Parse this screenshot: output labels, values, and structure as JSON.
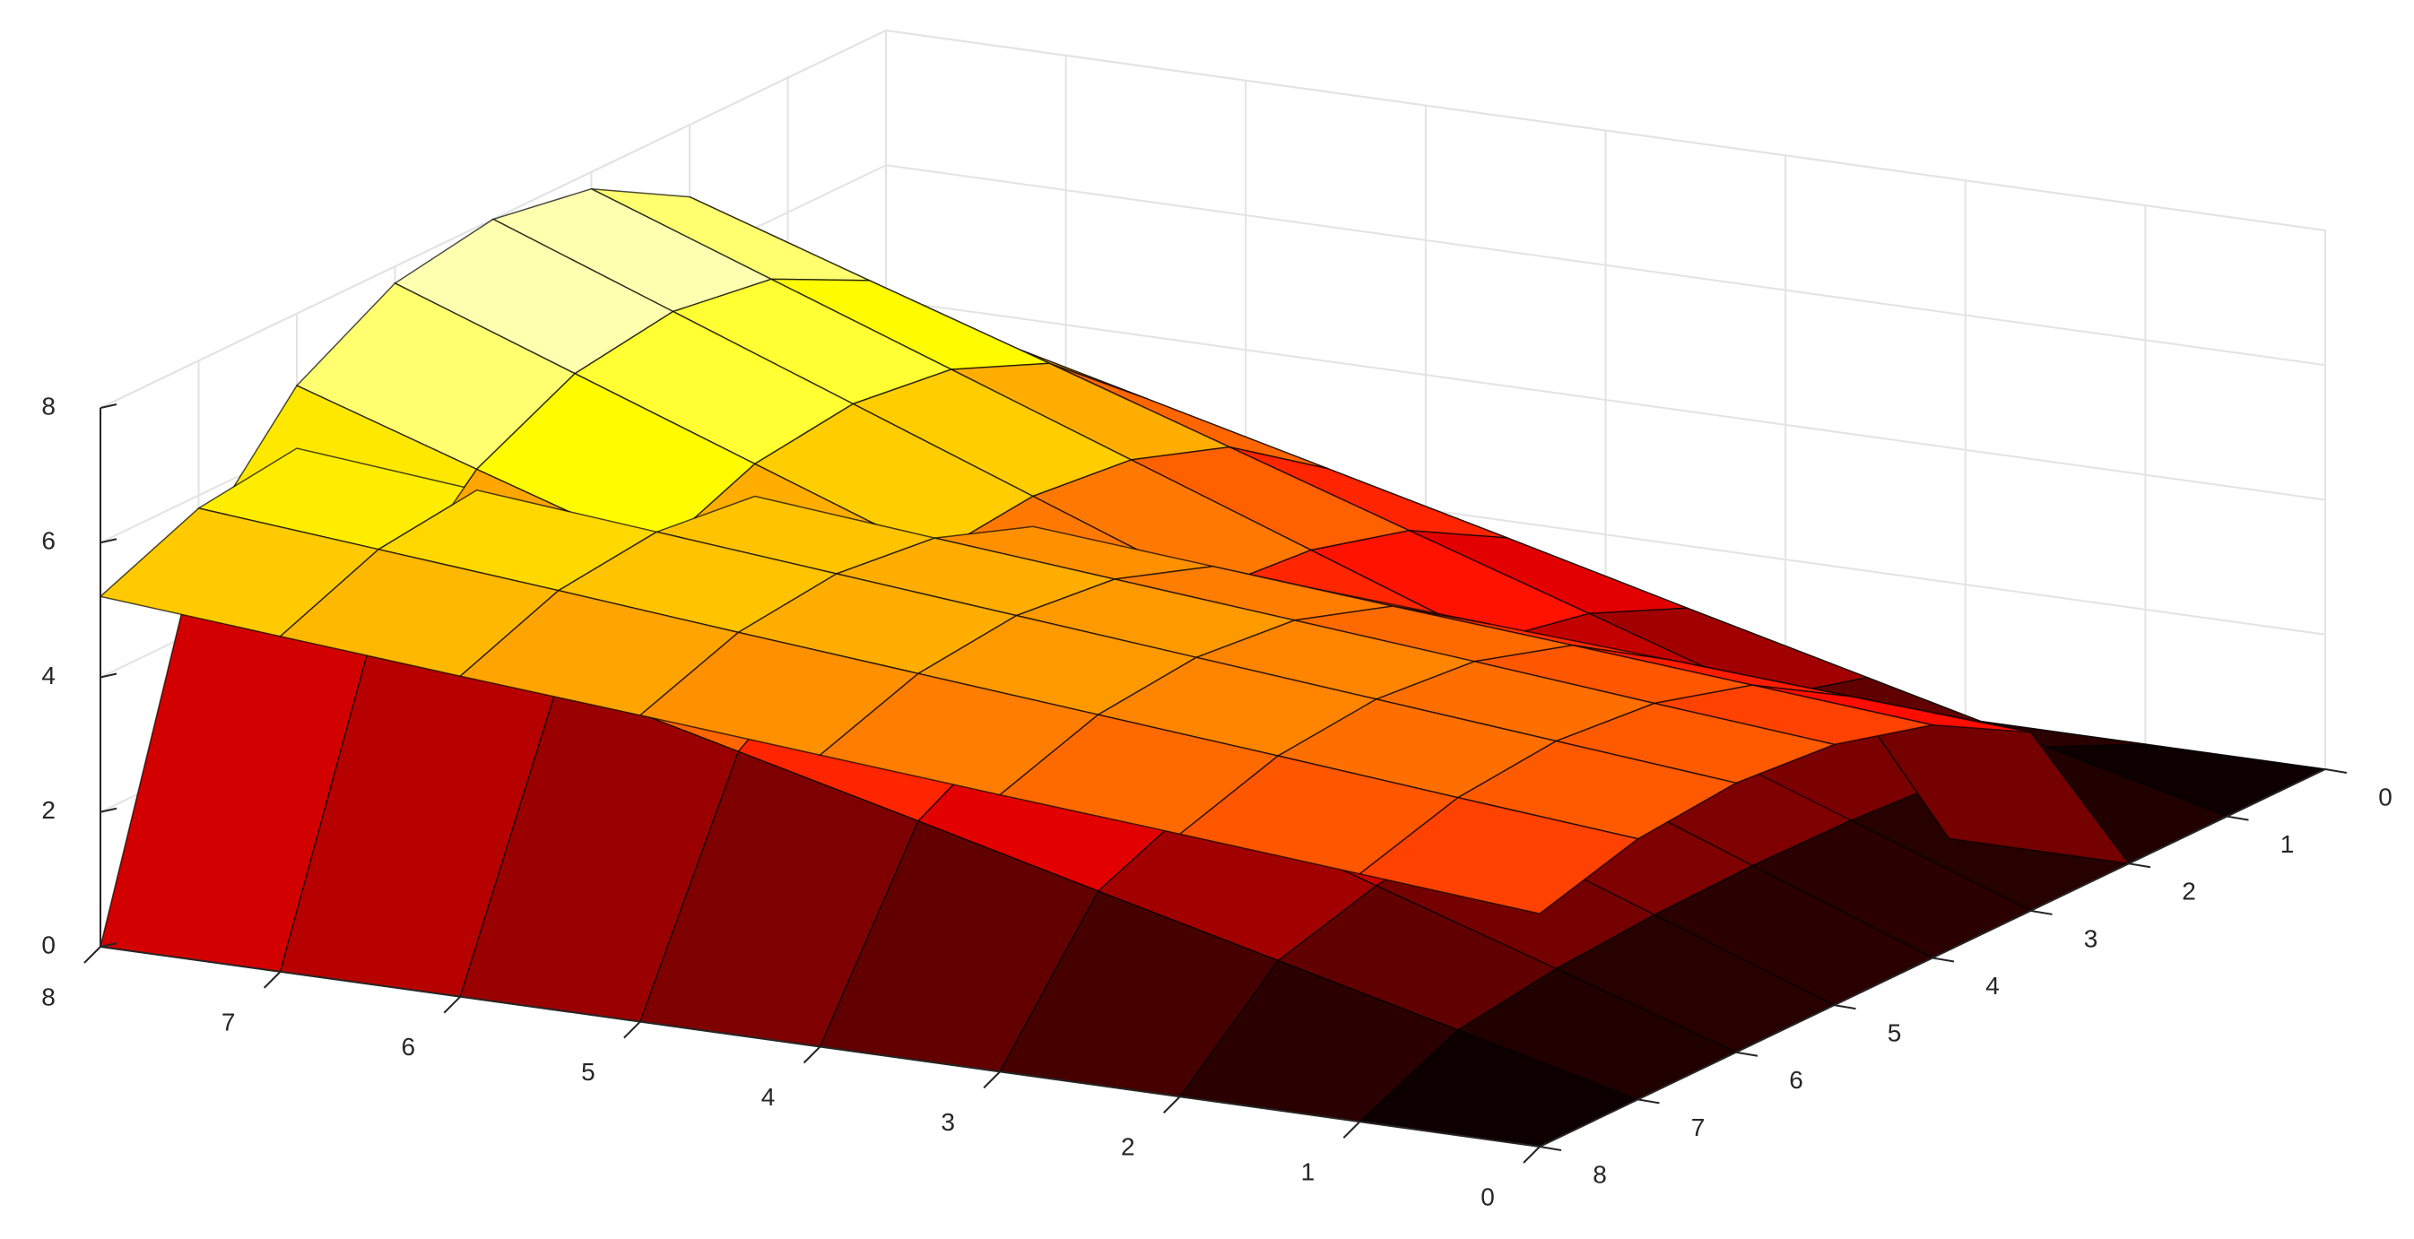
{
  "chart_data": {
    "type": "surface",
    "colormap": "hot",
    "grid": true,
    "x": [
      0,
      1,
      2,
      3,
      4,
      5,
      6,
      7,
      8
    ],
    "y": [
      0,
      1,
      2,
      3,
      4,
      5,
      6,
      7,
      8
    ],
    "xlim": [
      0,
      8
    ],
    "ylim": [
      0,
      8
    ],
    "zlim": [
      0,
      8
    ],
    "xticks": [
      0,
      1,
      2,
      3,
      4,
      5,
      6,
      7,
      8
    ],
    "yticks": [
      0,
      1,
      2,
      3,
      4,
      5,
      6,
      7,
      8
    ],
    "zticks": [
      0,
      2,
      4,
      6,
      8
    ],
    "series": [
      {
        "z": [
          [
            0,
            0,
            0,
            0,
            0,
            0,
            0,
            0,
            0
          ],
          [
            0,
            0.66,
            1.32,
            1.98,
            2.65,
            3.31,
            3.97,
            4.63,
            5.29
          ],
          [
            0,
            0.87,
            1.73,
            2.6,
            3.46,
            4.33,
            5.2,
            6.06,
            6.93
          ],
          [
            0,
            0.97,
            1.94,
            2.9,
            3.87,
            4.84,
            5.81,
            6.78,
            7.75
          ],
          [
            0,
            1,
            2,
            3,
            4,
            5,
            6,
            7,
            8
          ],
          [
            0,
            0.97,
            1.94,
            2.9,
            3.87,
            4.84,
            5.81,
            6.78,
            7.75
          ],
          [
            0,
            0.87,
            1.73,
            2.6,
            3.46,
            4.33,
            5.2,
            6.06,
            6.93
          ],
          [
            0,
            0.66,
            1.32,
            1.98,
            2.65,
            3.31,
            3.97,
            4.63,
            5.29
          ],
          [
            0,
            0,
            0,
            0,
            0,
            0,
            0,
            0,
            0
          ]
        ]
      },
      {
        "z": [
          [
            0,
            0,
            0,
            0,
            0,
            0,
            0,
            0,
            0
          ],
          [
            0,
            0,
            0,
            0,
            0,
            0,
            0,
            0,
            0
          ],
          [
            0,
            0,
            0,
            0,
            0,
            0,
            0,
            0,
            0
          ],
          [
            2.65,
            2.81,
            2.98,
            3.14,
            3.31,
            3.47,
            3.64,
            3.8,
            3.97
          ],
          [
            3.46,
            3.68,
            3.9,
            4.11,
            4.33,
            4.55,
            4.76,
            4.98,
            5.2
          ],
          [
            3.87,
            4.11,
            4.36,
            4.6,
            4.84,
            5.08,
            5.33,
            5.57,
            5.81
          ],
          [
            4,
            4.25,
            4.5,
            4.75,
            5,
            5.25,
            5.5,
            5.75,
            6
          ],
          [
            3.87,
            4.11,
            4.36,
            4.6,
            4.84,
            5.08,
            5.33,
            5.57,
            5.81
          ],
          [
            3.46,
            3.68,
            3.9,
            4.11,
            4.33,
            4.55,
            4.76,
            4.98,
            5.2
          ]
        ]
      }
    ]
  }
}
